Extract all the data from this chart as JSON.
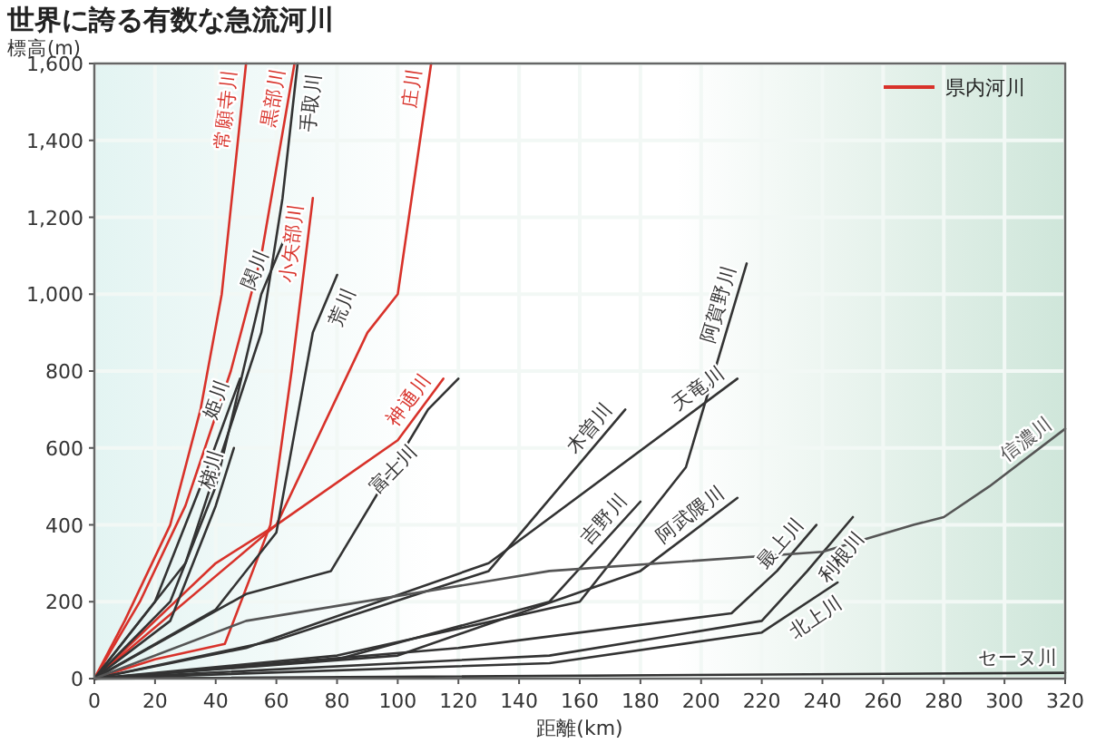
{
  "chart_data": {
    "type": "line",
    "title": "世界に誇る有数な急流河川",
    "xlabel": "距離(km)",
    "ylabel": "標高(m)",
    "legend_title": "県内河川",
    "legend": "top right",
    "grid": true,
    "line_style": "solid",
    "marker": "none",
    "xlim": [
      0,
      320
    ],
    "ylim": [
      0,
      1600
    ],
    "xticks": [
      0,
      20,
      40,
      60,
      80,
      100,
      120,
      140,
      160,
      180,
      200,
      220,
      240,
      260,
      280,
      300,
      320
    ],
    "yticks": [
      0,
      200,
      400,
      600,
      800,
      {
        "value": 1000,
        "label": "1,000"
      },
      {
        "value": 1200,
        "label": "1,200"
      },
      {
        "value": 1400,
        "label": "1,400"
      },
      {
        "value": 1600,
        "label": "1,600"
      }
    ],
    "series": [
      {
        "name": "常願寺川",
        "color": "#d8322a",
        "x": [
          0,
          10,
          25,
          35,
          42,
          50
        ],
        "values": [
          0,
          150,
          400,
          700,
          1000,
          1600
        ]
      },
      {
        "name": "黒部川",
        "color": "#d8322a",
        "x": [
          0,
          15,
          30,
          45,
          55,
          66
        ],
        "values": [
          0,
          200,
          450,
          800,
          1100,
          1600
        ]
      },
      {
        "name": "小矢部川",
        "color": "#d8322a",
        "x": [
          0,
          20,
          43,
          58,
          65,
          72
        ],
        "values": [
          0,
          50,
          90,
          400,
          800,
          1250
        ]
      },
      {
        "name": "庄川",
        "color": "#d8322a",
        "x": [
          0,
          20,
          40,
          60,
          90,
          100,
          111
        ],
        "values": [
          0,
          150,
          300,
          400,
          900,
          1000,
          1600
        ]
      },
      {
        "name": "神通川",
        "color": "#d8322a",
        "x": [
          0,
          60,
          100,
          115
        ],
        "values": [
          0,
          400,
          620,
          780
        ]
      },
      {
        "name": "手取川",
        "color": "#333333",
        "x": [
          0,
          30,
          55,
          62,
          67
        ],
        "values": [
          0,
          300,
          900,
          1250,
          1600
        ]
      },
      {
        "name": "関川",
        "color": "#333333",
        "x": [
          0,
          25,
          40,
          55,
          63
        ],
        "values": [
          0,
          200,
          500,
          1000,
          1150
        ]
      },
      {
        "name": "荒川",
        "color": "#333333",
        "x": [
          0,
          40,
          60,
          72,
          80
        ],
        "values": [
          0,
          180,
          380,
          900,
          1050
        ]
      },
      {
        "name": "姫川",
        "color": "#333333",
        "x": [
          0,
          20,
          35,
          48
        ],
        "values": [
          0,
          200,
          500,
          780
        ]
      },
      {
        "name": "梯川",
        "color": "#333333",
        "x": [
          0,
          25,
          40,
          46
        ],
        "values": [
          0,
          150,
          450,
          600
        ]
      },
      {
        "name": "富士川",
        "color": "#333333",
        "x": [
          0,
          50,
          78,
          110,
          120
        ],
        "values": [
          0,
          220,
          280,
          700,
          780
        ]
      },
      {
        "name": "木曽川",
        "color": "#333333",
        "x": [
          0,
          60,
          130,
          175
        ],
        "values": [
          0,
          100,
          280,
          700
        ]
      },
      {
        "name": "天竜川",
        "color": "#333333",
        "x": [
          0,
          50,
          130,
          212
        ],
        "values": [
          0,
          80,
          300,
          780
        ]
      },
      {
        "name": "阿賀野川",
        "color": "#333333",
        "x": [
          0,
          80,
          160,
          195,
          215
        ],
        "values": [
          0,
          60,
          200,
          550,
          1080
        ]
      },
      {
        "name": "吉野川",
        "color": "#333333",
        "x": [
          0,
          80,
          150,
          180
        ],
        "values": [
          0,
          50,
          200,
          460
        ]
      },
      {
        "name": "阿武隈川",
        "color": "#333333",
        "x": [
          0,
          100,
          180,
          212
        ],
        "values": [
          0,
          60,
          280,
          470
        ]
      },
      {
        "name": "最上川",
        "color": "#333333",
        "x": [
          0,
          120,
          210,
          225,
          238
        ],
        "values": [
          0,
          80,
          170,
          280,
          400
        ]
      },
      {
        "name": "利根川",
        "color": "#333333",
        "x": [
          0,
          150,
          220,
          235,
          250
        ],
        "values": [
          0,
          60,
          150,
          280,
          420
        ]
      },
      {
        "name": "北上川",
        "color": "#333333",
        "x": [
          0,
          150,
          220,
          245
        ],
        "values": [
          0,
          40,
          120,
          250
        ]
      },
      {
        "name": "信濃川",
        "color": "#555555",
        "x": [
          0,
          50,
          150,
          240,
          270,
          280,
          295,
          320
        ],
        "values": [
          0,
          150,
          280,
          330,
          400,
          420,
          500,
          650
        ]
      },
      {
        "name": "セーヌ川",
        "color": "#333333",
        "x": [
          0,
          320
        ],
        "values": [
          0,
          15
        ]
      }
    ]
  }
}
